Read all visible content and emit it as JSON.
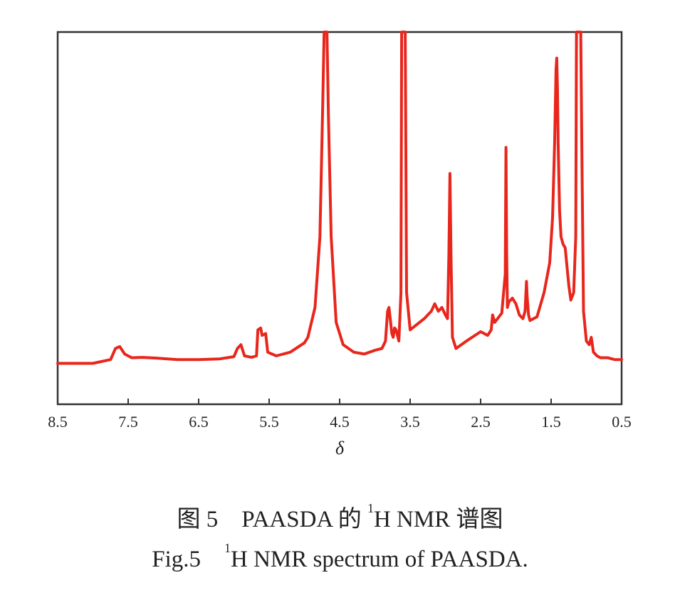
{
  "chart_data": {
    "type": "line",
    "xlabel": "δ",
    "xlim": [
      8.5,
      0.5
    ],
    "x_reversed": true,
    "ylim": [
      0,
      100
    ],
    "y_ticks_shown": false,
    "grid": false,
    "x_ticks": [
      "8.5",
      "7.5",
      "6.5",
      "5.5",
      "4.5",
      "3.5",
      "2.5",
      "1.5",
      "0.5"
    ],
    "series_color": "#e8261c",
    "series": [
      {
        "x": [
          8.5,
          8.0,
          7.75,
          7.68,
          7.62,
          7.55,
          7.45,
          7.3,
          7.1,
          6.8,
          6.5,
          6.2,
          6.0,
          5.95,
          5.9,
          5.85,
          5.75,
          5.68,
          5.66,
          5.62,
          5.6,
          5.55,
          5.52,
          5.4,
          5.2,
          5.0,
          4.95,
          4.85,
          4.78,
          4.74,
          4.72,
          4.7,
          4.68,
          4.66,
          4.62,
          4.55,
          4.45,
          4.3,
          4.15,
          4.0,
          3.9,
          3.85,
          3.82,
          3.8,
          3.76,
          3.74,
          3.72,
          3.7,
          3.66,
          3.63,
          3.62,
          3.6,
          3.58,
          3.57,
          3.55,
          3.5,
          3.4,
          3.3,
          3.2,
          3.15,
          3.1,
          3.05,
          3.0,
          2.97,
          2.95,
          2.935,
          2.92,
          2.9,
          2.85,
          2.7,
          2.5,
          2.4,
          2.35,
          2.33,
          2.3,
          2.2,
          2.15,
          2.14,
          2.13,
          2.12,
          2.1,
          2.05,
          2.0,
          1.95,
          1.9,
          1.87,
          1.85,
          1.84,
          1.82,
          1.8,
          1.7,
          1.6,
          1.52,
          1.48,
          1.45,
          1.43,
          1.42,
          1.41,
          1.4,
          1.38,
          1.36,
          1.33,
          1.3,
          1.28,
          1.25,
          1.22,
          1.18,
          1.15,
          1.14,
          1.12,
          1.1,
          1.08,
          1.06,
          1.04,
          1.0,
          0.96,
          0.93,
          0.9,
          0.85,
          0.8,
          0.7,
          0.6,
          0.5
        ],
        "y": [
          11,
          11,
          12,
          15,
          15.5,
          13.5,
          12.5,
          12.6,
          12.4,
          12,
          12,
          12.2,
          12.8,
          15,
          16,
          13,
          12.6,
          13,
          20,
          20.5,
          18.5,
          19,
          14,
          13,
          14,
          16.5,
          18,
          26,
          45,
          80,
          100,
          100,
          100,
          78,
          45,
          22,
          16,
          14,
          13.5,
          14.5,
          15,
          17,
          25,
          26,
          19,
          18,
          20.5,
          20,
          17,
          30,
          100,
          100,
          100,
          100,
          30,
          20,
          21.5,
          23,
          25,
          27,
          25,
          26,
          24,
          23,
          40,
          62,
          40,
          18,
          15,
          17,
          19.5,
          18.5,
          20,
          24,
          22,
          24.5,
          35,
          69,
          40,
          26,
          27.5,
          28.5,
          27,
          24,
          23,
          25,
          33,
          29,
          24,
          22.5,
          23.5,
          30,
          38,
          50,
          70,
          90,
          93,
          85,
          70,
          52,
          45,
          43,
          42,
          38,
          32,
          28,
          30,
          45,
          100,
          100,
          100,
          100,
          60,
          25,
          17,
          16,
          18,
          14,
          13,
          12.5,
          12.5,
          12,
          12
        ]
      }
    ]
  },
  "caption": {
    "cn_prefix": "图 5　PAASDA 的 ",
    "cn_sup": "1",
    "cn_suffix": "H NMR 谱图",
    "en_prefix": "Fig.5　",
    "en_sup": "1",
    "en_suffix": "H NMR spectrum of PAASDA."
  }
}
